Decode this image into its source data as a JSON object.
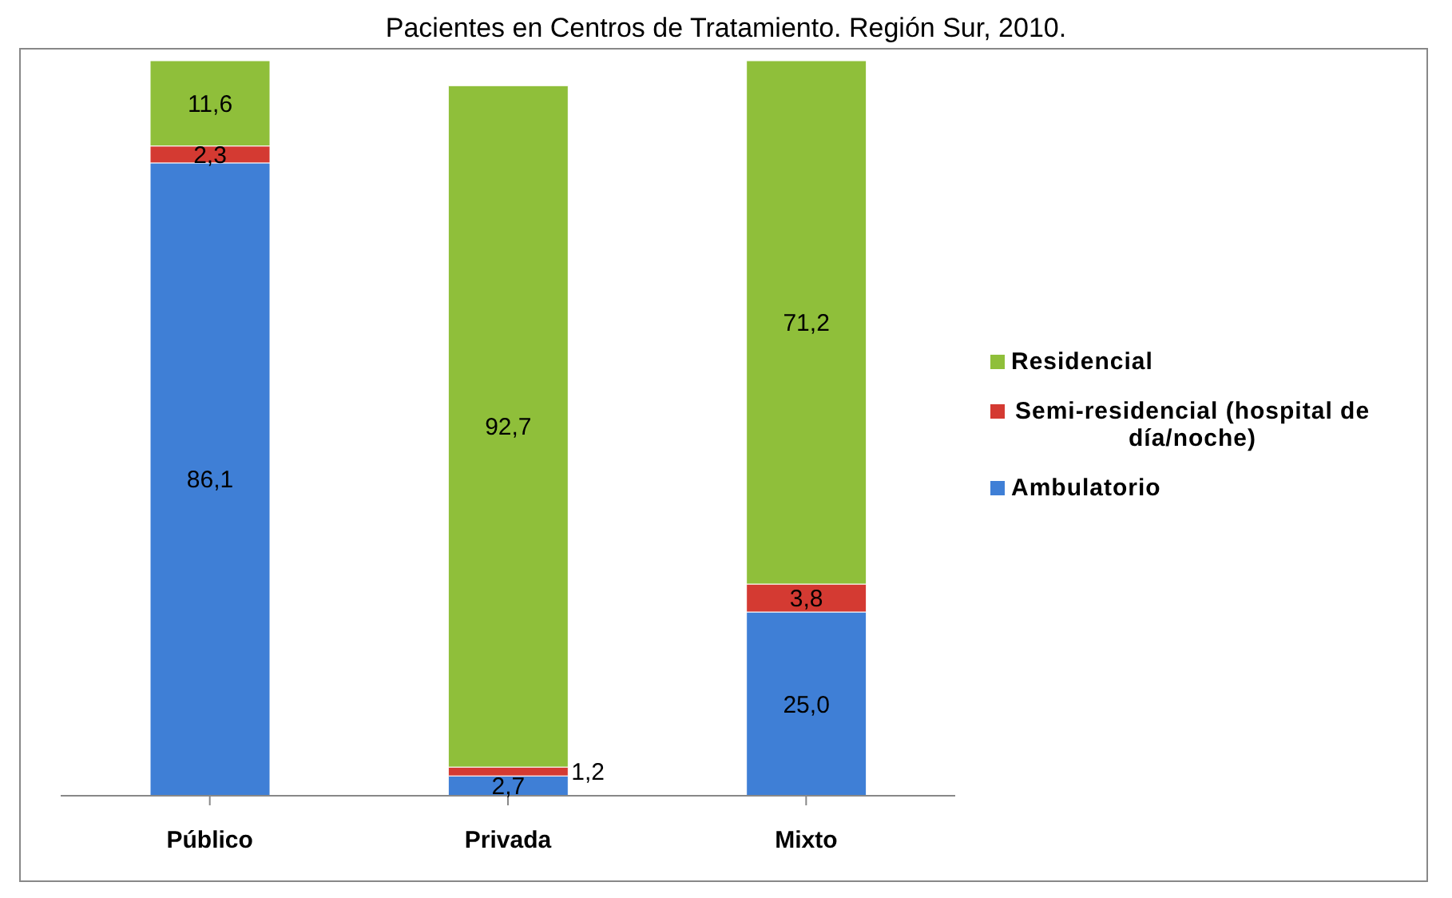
{
  "chart_data": {
    "type": "bar",
    "title": "Pacientes en Centros de Tratamiento. Región Sur, 2010.",
    "categories": [
      "Público",
      "Privada",
      "Mixto"
    ],
    "stacked": true,
    "data_labels": true,
    "legend": "right",
    "series": [
      {
        "name": "Ambulatorio",
        "color": "#3f7fd6",
        "values": [
          86.1,
          2.7,
          25.0
        ],
        "value_labels": [
          "86,1",
          "2,7",
          "25,0"
        ]
      },
      {
        "name": "Semi-residencial (hospital de día/noche)",
        "color": "#d43a32",
        "values": [
          2.3,
          1.2,
          3.8
        ],
        "value_labels": [
          "2,3",
          "1,2",
          "3,8"
        ]
      },
      {
        "name": "Residencial",
        "color": "#8fbf3a",
        "values": [
          11.6,
          92.7,
          71.2
        ],
        "value_labels": [
          "11,6",
          "92,7",
          "71,2"
        ]
      }
    ]
  }
}
